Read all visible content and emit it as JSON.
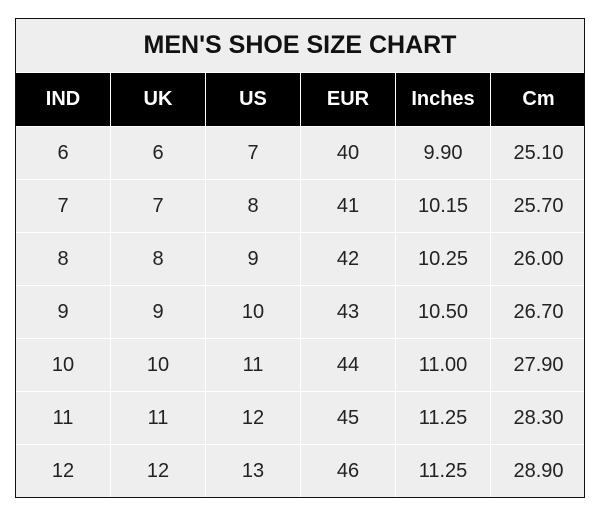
{
  "chart_data": {
    "type": "table",
    "title": "MEN'S SHOE SIZE CHART",
    "columns": [
      "IND",
      "UK",
      "US",
      "EUR",
      "Inches",
      "Cm"
    ],
    "rows": [
      [
        "6",
        "6",
        "7",
        "40",
        "9.90",
        "25.10"
      ],
      [
        "7",
        "7",
        "8",
        "41",
        "10.15",
        "25.70"
      ],
      [
        "8",
        "8",
        "9",
        "42",
        "10.25",
        "26.00"
      ],
      [
        "9",
        "9",
        "10",
        "43",
        "10.50",
        "26.70"
      ],
      [
        "10",
        "10",
        "11",
        "44",
        "11.00",
        "27.90"
      ],
      [
        "11",
        "11",
        "12",
        "45",
        "11.25",
        "28.30"
      ],
      [
        "12",
        "12",
        "13",
        "46",
        "11.25",
        "28.90"
      ]
    ]
  },
  "colors": {
    "header_bg": "#000000",
    "cell_bg": "#eeeeee",
    "grid": "#ffffff"
  }
}
